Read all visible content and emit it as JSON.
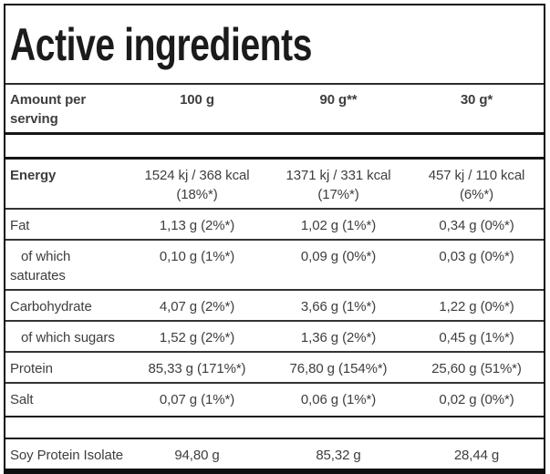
{
  "colors": {
    "border": "#101010",
    "text": "#3e3e3e",
    "title": "#1b1b1b",
    "background": "#ffffff"
  },
  "title": "Active ingredients",
  "table": {
    "header": {
      "label": "Amount per\nserving",
      "columns": [
        "100 g",
        "90 g**",
        "30 g*"
      ]
    },
    "rows": [
      {
        "label": "Energy",
        "values": [
          "1524 kj / 368 kcal\n(18%*)",
          "1371 kj / 331 kcal\n(17%*)",
          "457 kj / 110 kcal\n(6%*)"
        ]
      },
      {
        "label": "Fat",
        "values": [
          "1,13 g (2%*)",
          "1,02 g (1%*)",
          "0,34 g (0%*)"
        ]
      },
      {
        "label": "of which\nsaturates",
        "values": [
          "0,10 g (1%*)",
          "0,09 g (0%*)",
          "0,03 g (0%*)"
        ]
      },
      {
        "label": "Carbohydrate",
        "values": [
          "4,07 g (2%*)",
          "3,66 g (1%*)",
          "1,22 g (0%*)"
        ]
      },
      {
        "label": "of which sugars",
        "values": [
          "1,52 g (2%*)",
          "1,36 g (2%*)",
          "0,45 g (1%*)"
        ]
      },
      {
        "label": "Protein",
        "values": [
          "85,33 g (171%*)",
          "76,80 g (154%*)",
          "25,60 g (51%*)"
        ]
      },
      {
        "label": "Salt",
        "values": [
          "0,07 g (1%*)",
          "0,06 g (1%*)",
          "0,02 g (0%*)"
        ]
      },
      {
        "label": "Soy Protein Isolate",
        "values": [
          "94,80 g",
          "85,32 g",
          "28,44 g"
        ]
      }
    ]
  }
}
